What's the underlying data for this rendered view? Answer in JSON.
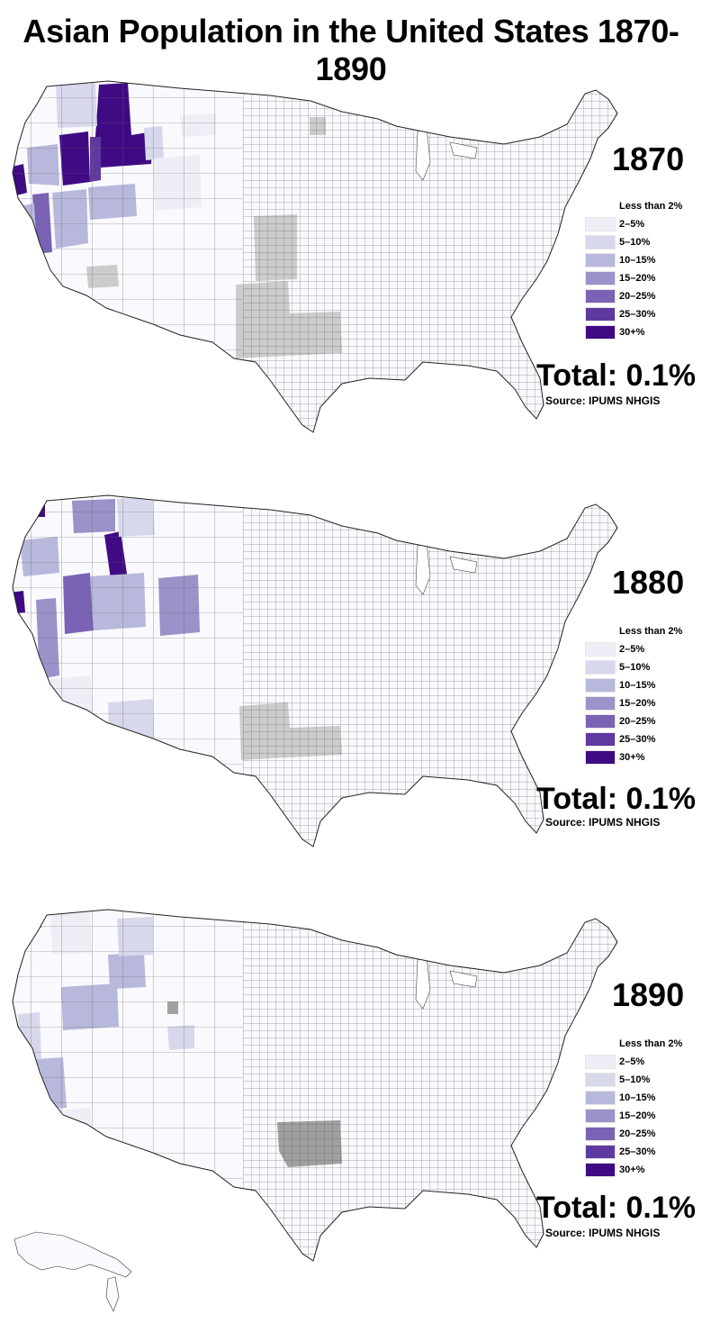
{
  "title": "Asian Population in the United States 1870-1890",
  "legend": {
    "items": [
      {
        "label": "Less than 2%",
        "color": "#fafafe"
      },
      {
        "label": "2–5%",
        "color": "#eeeef6"
      },
      {
        "label": "5–10%",
        "color": "#d8d8ec"
      },
      {
        "label": "10–15%",
        "color": "#b8b8dc"
      },
      {
        "label": "15–20%",
        "color": "#9a92c8"
      },
      {
        "label": "20–25%",
        "color": "#7a62b4"
      },
      {
        "label": "25–30%",
        "color": "#5e3aa0"
      },
      {
        "label": "30+%",
        "color": "#3f0a84"
      }
    ],
    "no_data_color": "#cccccc"
  },
  "panels": [
    {
      "year": "1870",
      "total": "Total: 0.1%",
      "source": "Source: IPUMS NHGIS"
    },
    {
      "year": "1880",
      "total": "Total: 0.1%",
      "source": "Source: IPUMS NHGIS"
    },
    {
      "year": "1890",
      "total": "Total: 0.1%",
      "source": "Source: IPUMS NHGIS"
    }
  ]
}
